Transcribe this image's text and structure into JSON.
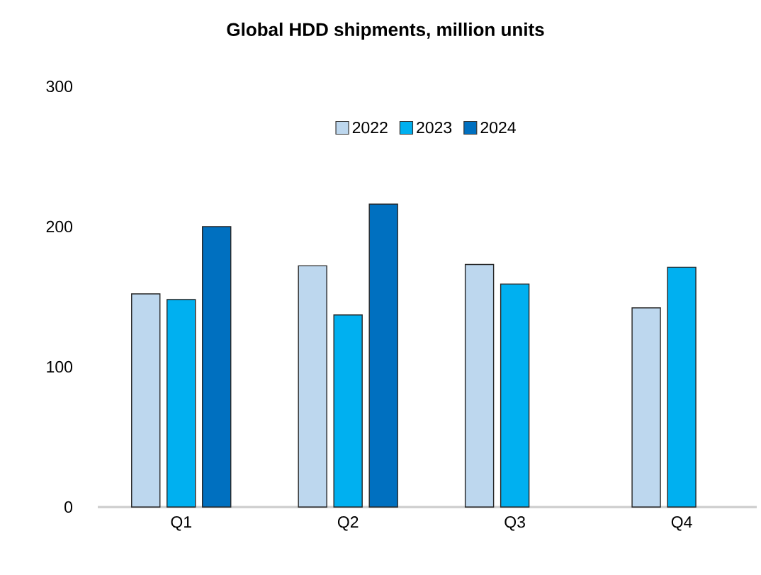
{
  "chart_data": {
    "type": "bar",
    "title": "Global HDD shipments, million units",
    "categories": [
      "Q1",
      "Q2",
      "Q3",
      "Q4"
    ],
    "series": [
      {
        "name": "2022",
        "color": "#bdd7ee",
        "values": [
          152,
          172,
          173,
          142
        ]
      },
      {
        "name": "2023",
        "color": "#00b0f0",
        "values": [
          148,
          137,
          159,
          171
        ]
      },
      {
        "name": "2024",
        "color": "#0070c0",
        "values": [
          200,
          216,
          null,
          null
        ]
      }
    ],
    "ylim": [
      0,
      300
    ],
    "yticks": [
      0,
      100,
      200,
      300
    ],
    "legend": "top"
  }
}
